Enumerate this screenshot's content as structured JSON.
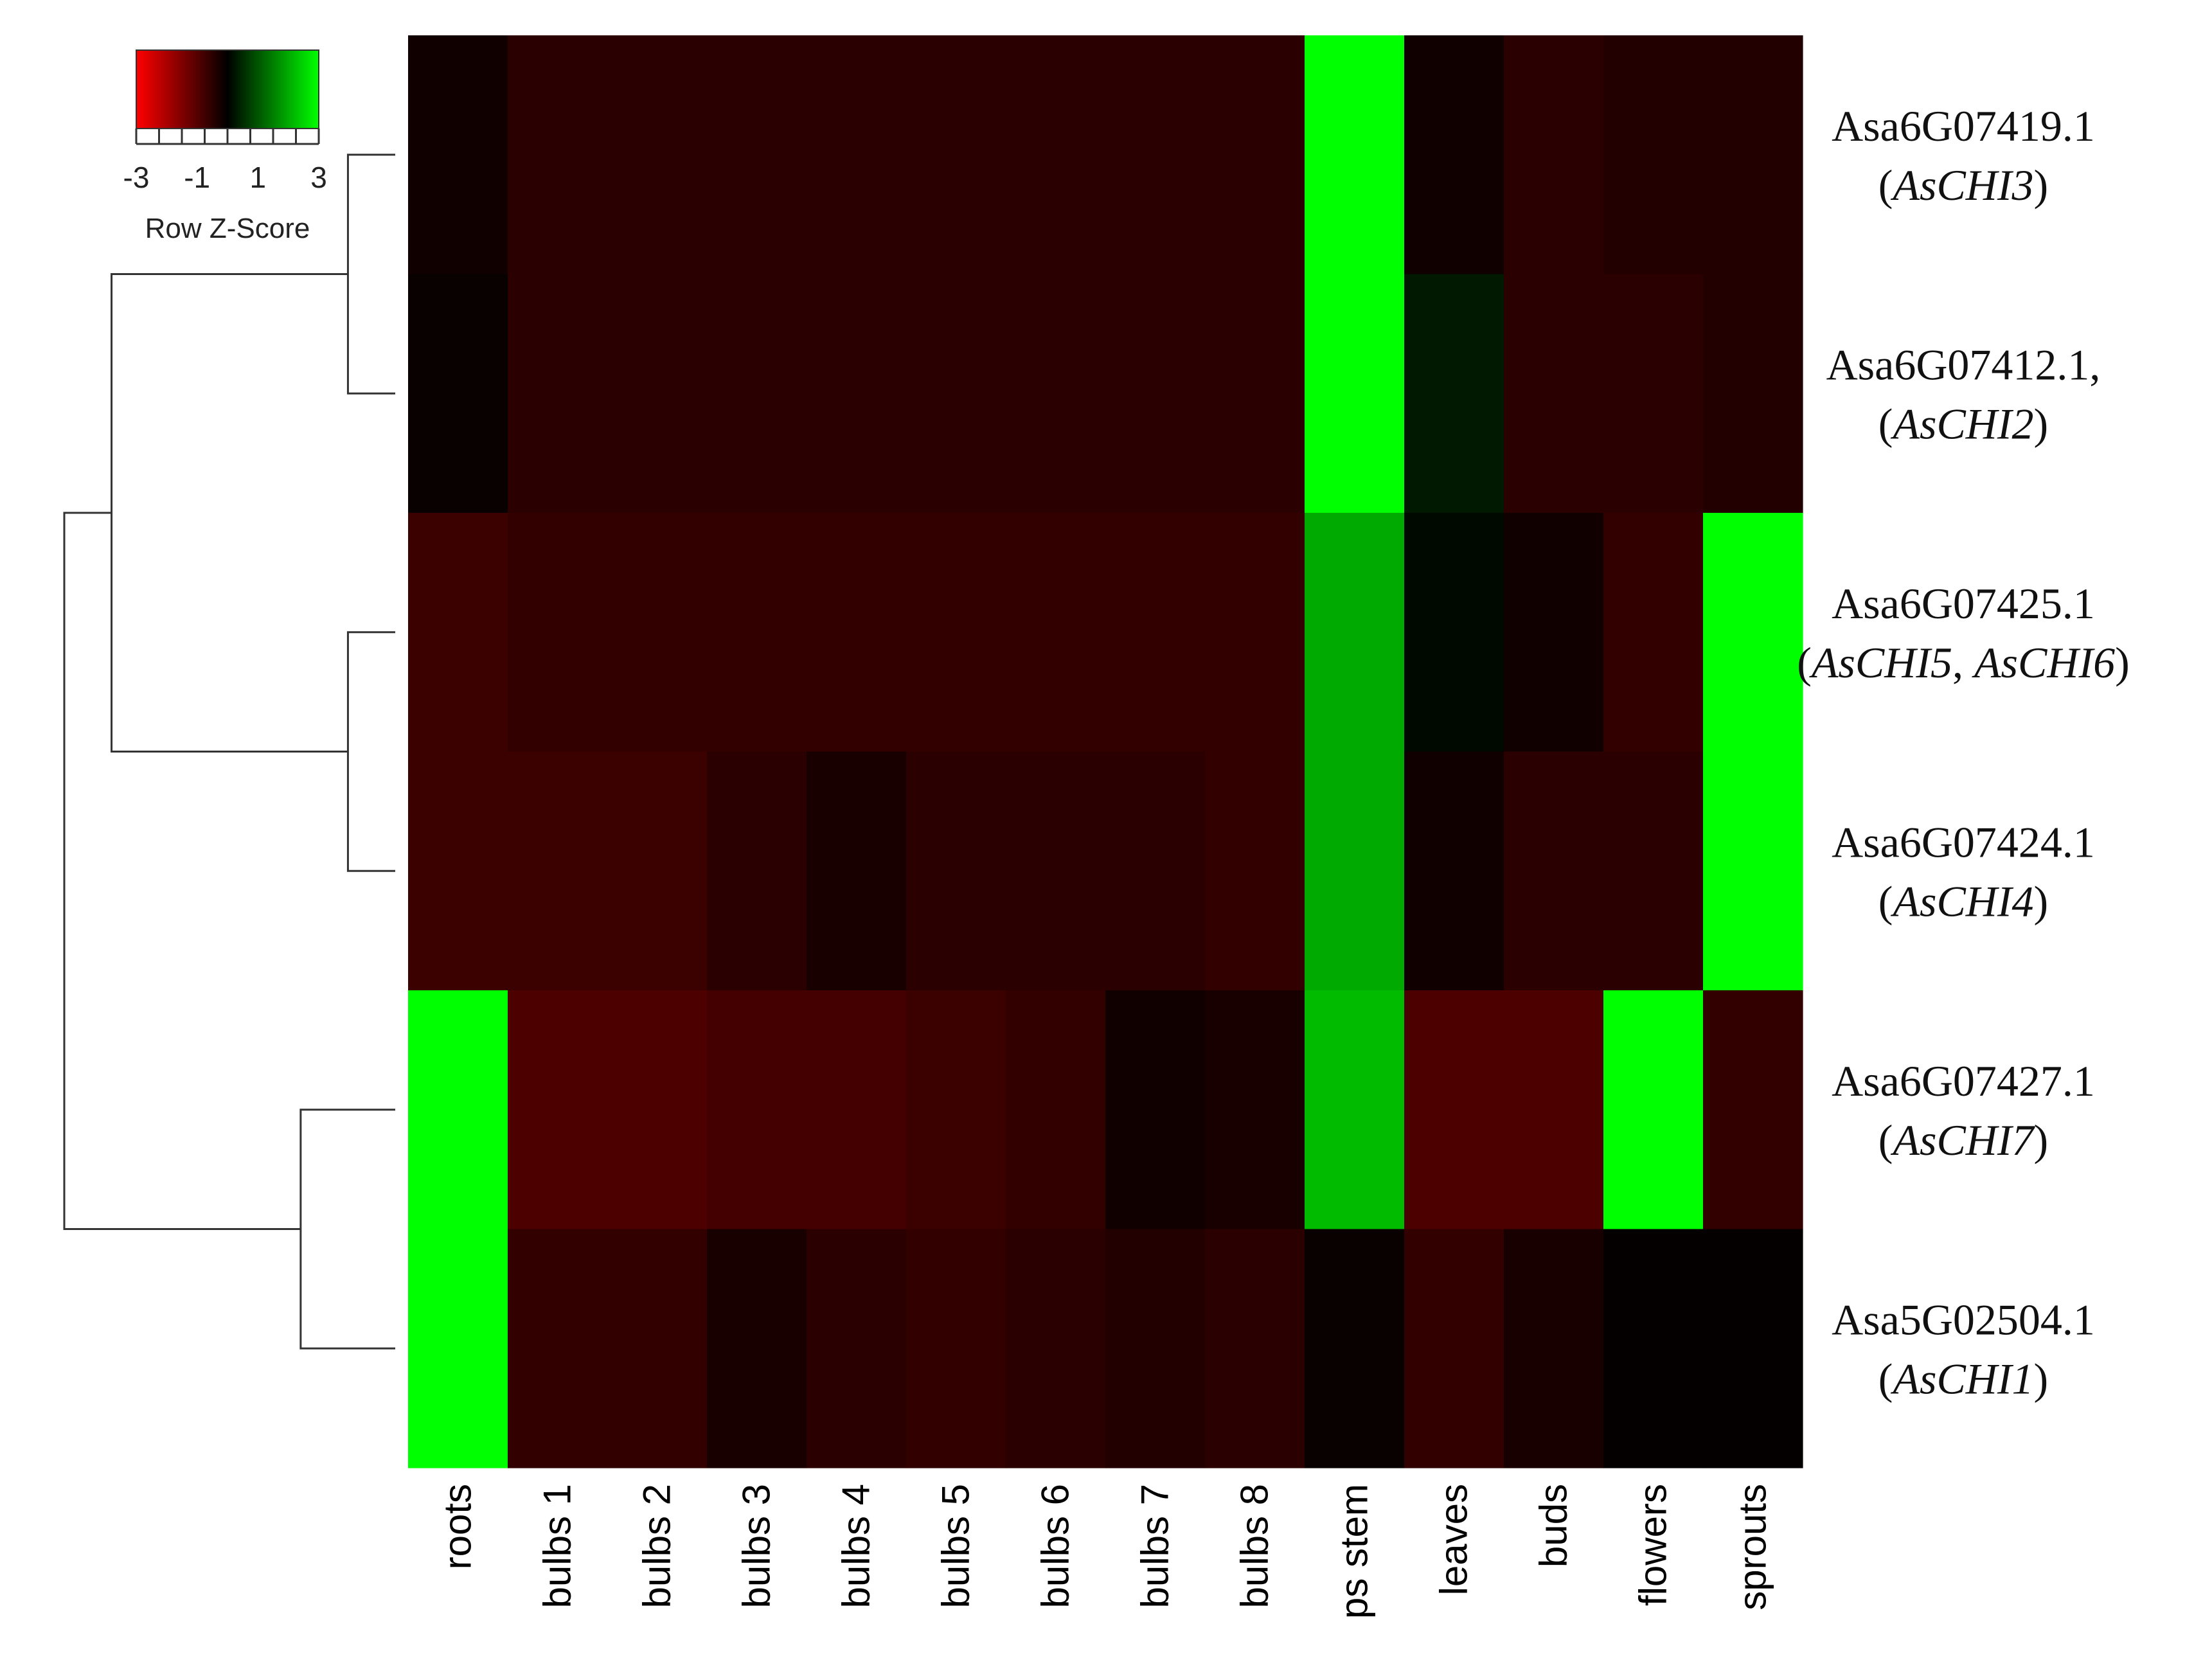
{
  "chart_data": {
    "type": "heatmap",
    "columns": [
      "roots",
      "bulbs 1",
      "bulbs 2",
      "bulbs 3",
      "bulbs 4",
      "bulbs 5",
      "bulbs 6",
      "bulbs 7",
      "bulbs 8",
      "ps stem",
      "leaves",
      "buds",
      "flowers",
      "sprouts"
    ],
    "rows": [
      {
        "id": "Asa6G07419.1",
        "gene_prefix": "(",
        "genes": [
          "AsCHI3"
        ],
        "gene_sep": ", ",
        "gene_suffix": ")"
      },
      {
        "id": "Asa6G07412.1,",
        "gene_prefix": "(",
        "genes": [
          "AsCHI2"
        ],
        "gene_sep": ", ",
        "gene_suffix": ")"
      },
      {
        "id": "Asa6G07425.1",
        "gene_prefix": "(",
        "genes": [
          "AsCHI5",
          "AsCHI6"
        ],
        "gene_sep": ", ",
        "gene_suffix": ")"
      },
      {
        "id": "Asa6G07424.1",
        "gene_prefix": "(",
        "genes": [
          "AsCHI4"
        ],
        "gene_sep": ", ",
        "gene_suffix": ")"
      },
      {
        "id": "Asa6G07427.1",
        "gene_prefix": "(",
        "genes": [
          "AsCHI7"
        ],
        "gene_sep": ", ",
        "gene_suffix": ")"
      },
      {
        "id": "Asa5G02504.1",
        "gene_prefix": "(",
        "genes": [
          "AsCHI1"
        ],
        "gene_sep": ", ",
        "gene_suffix": ")"
      }
    ],
    "values": [
      [
        -0.2,
        -0.5,
        -0.5,
        -0.5,
        -0.5,
        -0.5,
        -0.5,
        -0.5,
        -0.5,
        3.5,
        -0.2,
        -0.5,
        -0.4,
        -0.4
      ],
      [
        -0.1,
        -0.5,
        -0.5,
        -0.5,
        -0.5,
        -0.5,
        -0.5,
        -0.5,
        -0.5,
        3.5,
        0.3,
        -0.5,
        -0.5,
        -0.4
      ],
      [
        -0.7,
        -0.6,
        -0.6,
        -0.6,
        -0.6,
        -0.6,
        -0.6,
        -0.6,
        -0.6,
        2.0,
        0.1,
        -0.2,
        -0.6,
        3.5
      ],
      [
        -0.7,
        -0.7,
        -0.7,
        -0.5,
        -0.3,
        -0.5,
        -0.5,
        -0.5,
        -0.6,
        2.0,
        -0.2,
        -0.5,
        -0.5,
        3.5
      ],
      [
        3.0,
        -0.9,
        -0.9,
        -0.8,
        -0.8,
        -0.7,
        -0.6,
        -0.2,
        -0.3,
        2.2,
        -0.9,
        -0.9,
        3.0,
        -0.6
      ],
      [
        3.5,
        -0.6,
        -0.6,
        -0.3,
        -0.5,
        -0.6,
        -0.5,
        -0.4,
        -0.5,
        -0.1,
        -0.6,
        -0.3,
        -0.05,
        -0.05
      ]
    ],
    "legend": {
      "title": "Row Z-Score",
      "tick_labels": [
        "-3",
        "-1",
        "1",
        "3"
      ],
      "range": [
        -3,
        3
      ],
      "low_color": "#ff0000",
      "mid_color": "#000000",
      "high_color": "#00ff00",
      "placement": "top-left"
    },
    "dendrogram": {
      "side": "left",
      "merges": [
        {
          "children": [
            "r0",
            "r1"
          ],
          "height": 1
        },
        {
          "children": [
            "r2",
            "r3"
          ],
          "height": 1
        },
        {
          "children": [
            "r4",
            "r5"
          ],
          "height": 2
        },
        {
          "children": [
            "m0",
            "m1"
          ],
          "height": 6
        },
        {
          "children": [
            "m3",
            "m2"
          ],
          "height": 7
        }
      ]
    }
  }
}
